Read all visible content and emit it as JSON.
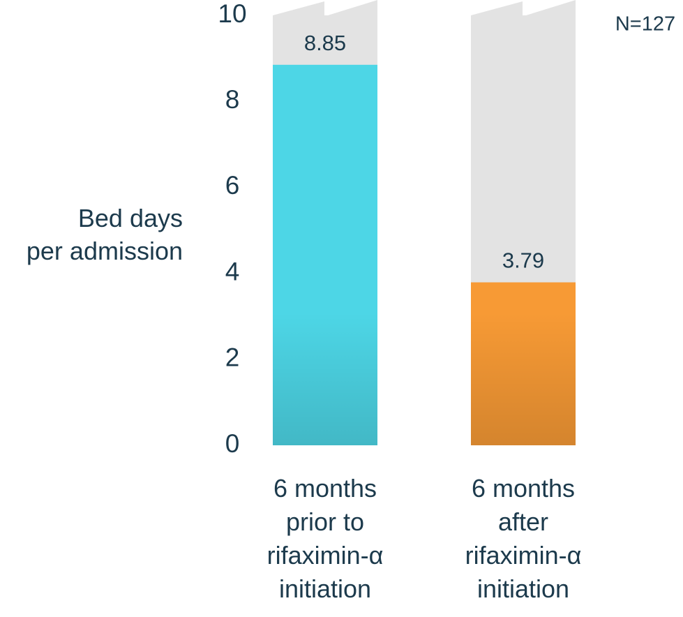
{
  "chart_data": {
    "type": "bar",
    "y_label": "Bed days\nper admission",
    "annotation": "N=127",
    "categories": [
      "6 months\nprior to\nrifaximin-α\ninitiation",
      "6 months\nafter\nrifaximin-α\ninitiation"
    ],
    "values": [
      8.85,
      3.79
    ],
    "colors": [
      "#4dd6e6",
      "#f79a35"
    ],
    "background_color": "#e3e3e3",
    "ylim": [
      0,
      10
    ],
    "yticks": [
      0,
      2,
      4,
      6,
      8,
      10
    ],
    "grid": false
  }
}
